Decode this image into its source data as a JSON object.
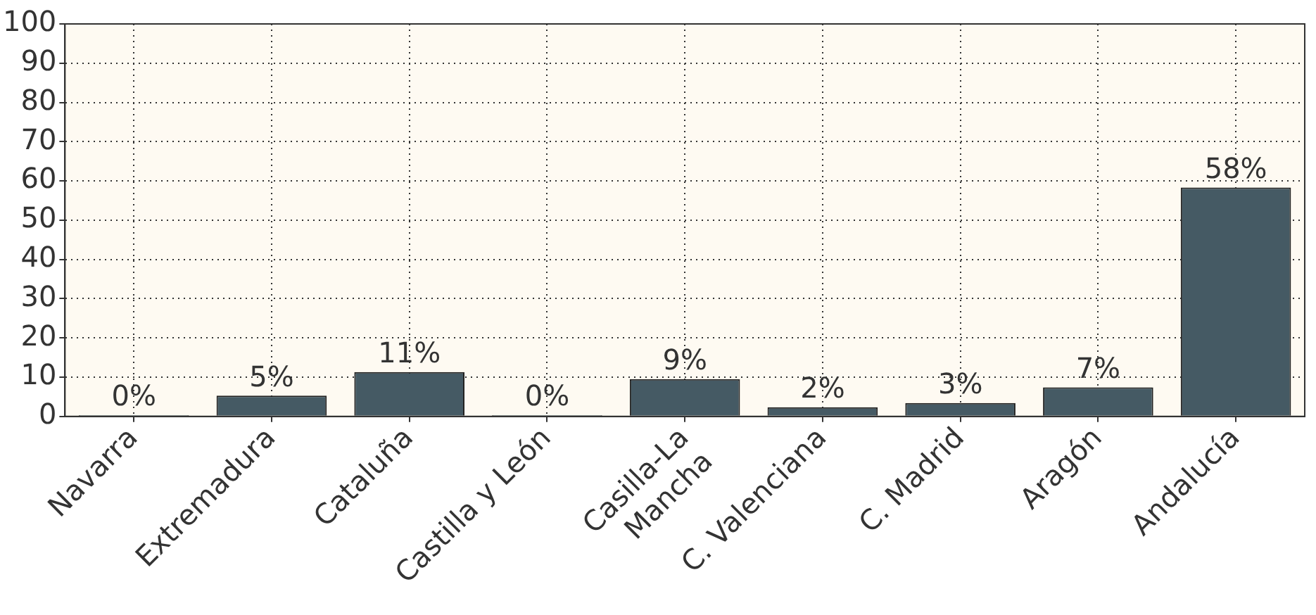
{
  "chart_data": {
    "type": "bar",
    "categories": [
      "Navarra",
      "Extremadura",
      "Cataluña",
      "Castilla y León",
      "Casilla-La\nMancha",
      "C. Valenciana",
      "C. Madrid",
      "Aragón",
      "Andalucía"
    ],
    "values": [
      0.3,
      5.3,
      11.3,
      0.3,
      9.5,
      2.3,
      3.4,
      7.4,
      58.3
    ],
    "value_labels": [
      "0%",
      "5%",
      "11%",
      "0%",
      "9%",
      "2%",
      "3%",
      "7%",
      "58%"
    ],
    "color": "#455a64",
    "ylim": [
      0,
      100
    ],
    "yticks": [
      0,
      10,
      20,
      30,
      40,
      50,
      60,
      70,
      80,
      90,
      100
    ],
    "grid": true,
    "legend": false
  }
}
